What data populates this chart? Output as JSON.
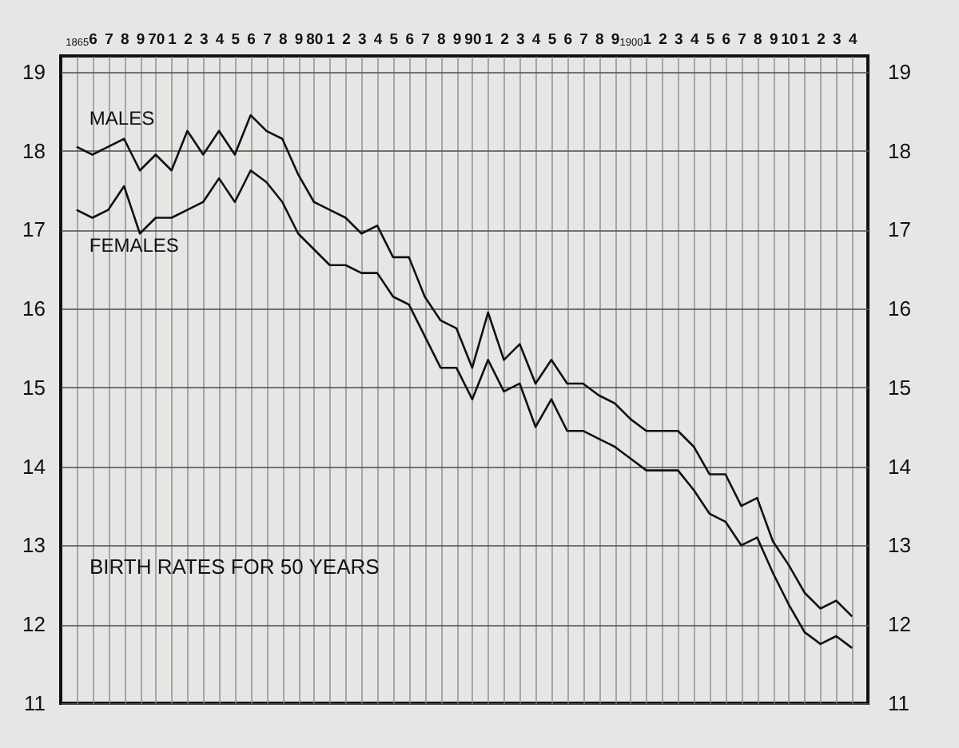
{
  "chart_data": {
    "type": "line",
    "title": "BIRTH RATES FOR 50 YEARS",
    "categories": [
      "1865",
      "6",
      "7",
      "8",
      "9",
      "70",
      "1",
      "2",
      "3",
      "4",
      "5",
      "6",
      "7",
      "8",
      "9",
      "80",
      "1",
      "2",
      "3",
      "4",
      "5",
      "6",
      "7",
      "8",
      "9",
      "90",
      "1",
      "2",
      "3",
      "4",
      "5",
      "6",
      "7",
      "8",
      "9",
      "1900",
      "1",
      "2",
      "3",
      "4",
      "5",
      "6",
      "7",
      "8",
      "9",
      "10",
      "1",
      "2",
      "3",
      "4"
    ],
    "series": [
      {
        "name": "MALES",
        "color": "#111111",
        "values": [
          18.05,
          17.95,
          18.05,
          18.15,
          17.75,
          17.95,
          17.75,
          18.25,
          17.95,
          18.25,
          17.95,
          18.45,
          18.25,
          18.15,
          17.7,
          17.35,
          17.25,
          17.15,
          16.95,
          17.05,
          16.65,
          16.65,
          16.15,
          15.85,
          15.75,
          15.25,
          15.95,
          15.35,
          15.55,
          15.05,
          15.35,
          15.05,
          15.05,
          14.9,
          14.8,
          14.6,
          14.45,
          14.45,
          14.45,
          14.25,
          13.9,
          13.9,
          13.5,
          13.6,
          13.05,
          12.75,
          12.4,
          12.2,
          12.3,
          12.1
        ]
      },
      {
        "name": "FEMALES",
        "color": "#111111",
        "values": [
          17.25,
          17.15,
          17.25,
          17.55,
          16.95,
          17.15,
          17.15,
          17.25,
          17.35,
          17.65,
          17.35,
          17.75,
          17.6,
          17.35,
          16.95,
          16.75,
          16.55,
          16.55,
          16.45,
          16.45,
          16.15,
          16.05,
          15.65,
          15.25,
          15.25,
          14.85,
          15.35,
          14.95,
          15.05,
          14.5,
          14.85,
          14.45,
          14.45,
          14.35,
          14.25,
          14.1,
          13.95,
          13.95,
          13.95,
          13.7,
          13.4,
          13.3,
          13.0,
          13.1,
          12.65,
          12.25,
          11.9,
          11.75,
          11.85,
          11.7
        ]
      }
    ],
    "ylim": [
      11,
      19.2
    ],
    "yticks": [
      11,
      12,
      13,
      14,
      15,
      16,
      17,
      18,
      19
    ],
    "y2lim": [
      11,
      19.2
    ],
    "y2ticks": [
      11,
      12,
      13,
      14,
      15,
      16,
      17,
      18,
      19
    ],
    "grid": true
  }
}
